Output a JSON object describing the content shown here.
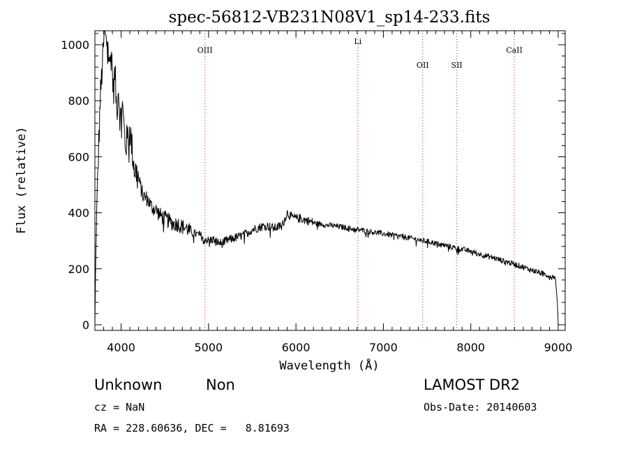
{
  "chart_data": {
    "type": "line",
    "title": "spec-56812-VB231N08V1_sp14-233.fits",
    "xlabel": "Wavelength (Å)",
    "ylabel": "Flux (relative)",
    "xlim": [
      3700,
      9080
    ],
    "ylim": [
      -20,
      1050
    ],
    "xticks": [
      4000,
      5000,
      6000,
      7000,
      8000,
      9000
    ],
    "yticks": [
      0,
      200,
      400,
      600,
      800,
      1000
    ],
    "grid": false,
    "line_color": "#000000",
    "marker_color": "#dd3333",
    "lines": [
      {
        "label": "OIII",
        "x": 4959,
        "label_y": 972
      },
      {
        "label": "Li",
        "x": 6708,
        "label_y": 1002
      },
      {
        "label": "OII",
        "x": 7450,
        "label_y": 918
      },
      {
        "label": "SII",
        "x": 7840,
        "label_y": 918
      },
      {
        "label": "CaII",
        "x": 8498,
        "label_y": 972
      }
    ],
    "series": [
      {
        "x": [
          3700,
          3710,
          3730,
          3760,
          3790,
          3810,
          3830,
          3850,
          3870,
          3890,
          3910,
          3930,
          3950,
          3970,
          3990,
          4010,
          4050,
          4100,
          4150,
          4200,
          4250,
          4300,
          4350,
          4400,
          4450,
          4500,
          4550,
          4600,
          4650,
          4700,
          4750,
          4800,
          4850,
          4900,
          4950,
          5000,
          5050,
          5100,
          5150,
          5200,
          5250,
          5300,
          5350,
          5400,
          5450,
          5500,
          5550,
          5600,
          5650,
          5700,
          5750,
          5800,
          5850,
          5900,
          5950,
          6000,
          6050,
          6100,
          6150,
          6200,
          6250,
          6300,
          6350,
          6400,
          6450,
          6500,
          6550,
          6600,
          6650,
          6700,
          6750,
          6800,
          6850,
          6900,
          6950,
          7000,
          7050,
          7100,
          7150,
          7200,
          7250,
          7300,
          7350,
          7400,
          7450,
          7500,
          7550,
          7600,
          7650,
          7700,
          7750,
          7800,
          7850,
          7900,
          7950,
          8000,
          8050,
          8100,
          8150,
          8200,
          8250,
          8300,
          8350,
          8400,
          8450,
          8500,
          8550,
          8600,
          8650,
          8700,
          8750,
          8800,
          8850,
          8900,
          8930,
          8950,
          8970,
          8990,
          9000
        ],
        "values": [
          0,
          250,
          500,
          800,
          950,
          1050,
          1000,
          1040,
          920,
          980,
          830,
          900,
          760,
          850,
          720,
          800,
          640,
          700,
          560,
          520,
          460,
          450,
          420,
          410,
          390,
          380,
          370,
          360,
          360,
          350,
          345,
          330,
          325,
          320,
          310,
          300,
          305,
          295,
          290,
          300,
          305,
          310,
          315,
          320,
          330,
          340,
          345,
          350,
          355,
          350,
          345,
          350,
          360,
          400,
          385,
          380,
          380,
          375,
          370,
          365,
          360,
          360,
          355,
          355,
          352,
          350,
          348,
          345,
          342,
          340,
          338,
          335,
          333,
          330,
          328,
          325,
          323,
          320,
          318,
          316,
          313,
          310,
          307,
          304,
          300,
          298,
          295,
          290,
          287,
          284,
          280,
          276,
          273,
          270,
          266,
          262,
          258,
          253,
          248,
          244,
          240,
          235,
          230,
          226,
          221,
          216,
          211,
          206,
          200,
          195,
          190,
          185,
          180,
          175,
          170,
          175,
          160,
          80,
          0
        ]
      }
    ]
  },
  "info": {
    "object_class": "Unknown",
    "subclass": "Non",
    "survey": "LAMOST DR2",
    "cz": "cz = NaN",
    "obs_date": "Obs-Date: 20140603",
    "coords": "RA = 228.60636, DEC =   8.81693"
  }
}
